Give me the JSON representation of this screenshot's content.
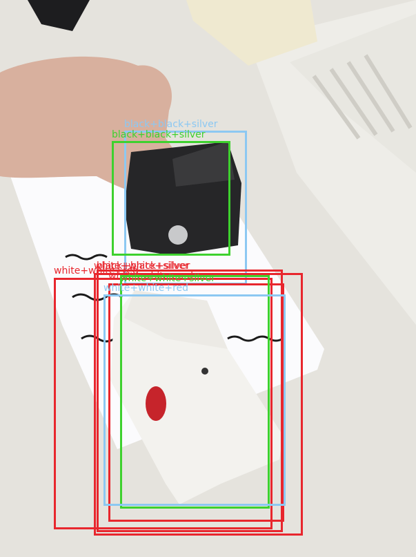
{
  "photo": {
    "description_objects": [
      "desk",
      "paper-sheet",
      "hand",
      "black-box",
      "white-box"
    ],
    "colors": {
      "red": "#e8262d",
      "green": "#3ed12e",
      "lightblue": "#8cc8f2"
    }
  },
  "detections": [
    {
      "label": "black+black+silver",
      "color": "lightblue"
    },
    {
      "label": "black+black+silver",
      "color": "green"
    },
    {
      "label": "white+white+red",
      "color": "red"
    },
    {
      "label": "white+white+silver",
      "color": "red"
    },
    {
      "label": "white+white+red",
      "color": "red"
    },
    {
      "label": "black+black+silver",
      "color": "red"
    },
    {
      "label": "white+white+silver",
      "color": "green"
    },
    {
      "label": "white+white+red",
      "color": "lightblue"
    }
  ]
}
